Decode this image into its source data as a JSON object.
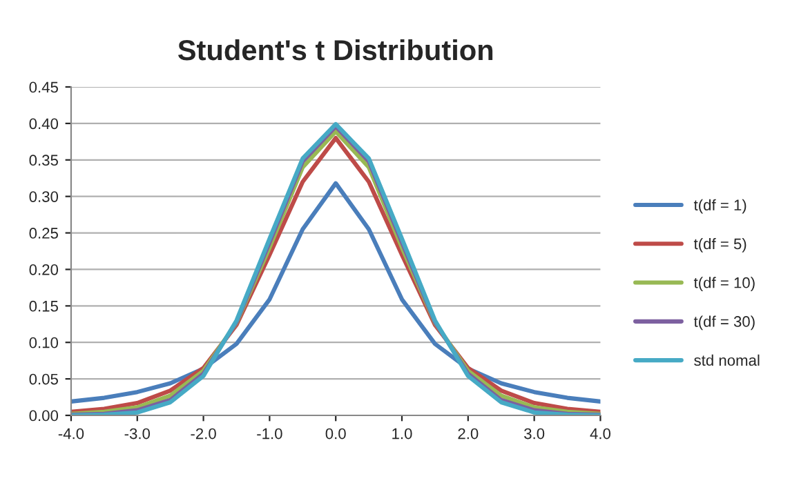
{
  "chart_data": {
    "type": "line",
    "title": "Student's t Distribution",
    "x": [
      -4.0,
      -3.5,
      -3.0,
      -2.5,
      -2.0,
      -1.5,
      -1.0,
      -0.5,
      0.0,
      0.5,
      1.0,
      1.5,
      2.0,
      2.5,
      3.0,
      3.5,
      4.0
    ],
    "series": [
      {
        "name": "t(df = 1)",
        "color": "#4a7ebb",
        "values": [
          0.019,
          0.024,
          0.032,
          0.044,
          0.064,
          0.098,
          0.159,
          0.255,
          0.318,
          0.255,
          0.159,
          0.098,
          0.064,
          0.044,
          0.032,
          0.024,
          0.019
        ]
      },
      {
        "name": "t(df = 5)",
        "color": "#be4b48",
        "values": [
          0.005,
          0.009,
          0.017,
          0.034,
          0.065,
          0.124,
          0.22,
          0.32,
          0.38,
          0.32,
          0.22,
          0.124,
          0.065,
          0.034,
          0.017,
          0.009,
          0.005
        ]
      },
      {
        "name": "t(df = 10)",
        "color": "#98b954",
        "values": [
          0.002,
          0.005,
          0.011,
          0.027,
          0.061,
          0.127,
          0.23,
          0.34,
          0.389,
          0.34,
          0.23,
          0.127,
          0.061,
          0.027,
          0.011,
          0.005,
          0.002
        ]
      },
      {
        "name": "t(df = 30)",
        "color": "#7d60a0",
        "values": [
          0.001,
          0.002,
          0.007,
          0.021,
          0.057,
          0.128,
          0.237,
          0.348,
          0.396,
          0.348,
          0.237,
          0.128,
          0.057,
          0.021,
          0.007,
          0.002,
          0.001
        ]
      },
      {
        "name": "std nomal",
        "color": "#46aac5",
        "values": [
          0.0,
          0.001,
          0.004,
          0.018,
          0.054,
          0.13,
          0.242,
          0.352,
          0.399,
          0.352,
          0.242,
          0.13,
          0.054,
          0.018,
          0.004,
          0.001,
          0.0
        ]
      }
    ],
    "xlim": [
      -4.0,
      4.0
    ],
    "xticks": [
      {
        "value": -4,
        "label": "-4.0"
      },
      {
        "value": -3,
        "label": "-3.0"
      },
      {
        "value": -2,
        "label": "-2.0"
      },
      {
        "value": -1,
        "label": "-1.0"
      },
      {
        "value": 0,
        "label": "0.0"
      },
      {
        "value": 1,
        "label": "1.0"
      },
      {
        "value": 2,
        "label": "2.0"
      },
      {
        "value": 3,
        "label": "3.0"
      },
      {
        "value": 4,
        "label": "4.0"
      }
    ],
    "ylim": [
      0,
      0.45
    ],
    "yticks": [
      {
        "value": 0,
        "label": "0.00"
      },
      {
        "value": 0.05,
        "label": "0.05"
      },
      {
        "value": 0.1,
        "label": "0.10"
      },
      {
        "value": 0.15,
        "label": "0.15"
      },
      {
        "value": 0.2,
        "label": "0.20"
      },
      {
        "value": 0.25,
        "label": "0.25"
      },
      {
        "value": 0.3,
        "label": "0.30"
      },
      {
        "value": 0.35,
        "label": "0.35"
      },
      {
        "value": 0.4,
        "label": "0.40"
      },
      {
        "value": 0.45,
        "label": "0.45"
      }
    ],
    "grid": "y",
    "legend": "right",
    "marker": "none",
    "line_style": "solid"
  }
}
